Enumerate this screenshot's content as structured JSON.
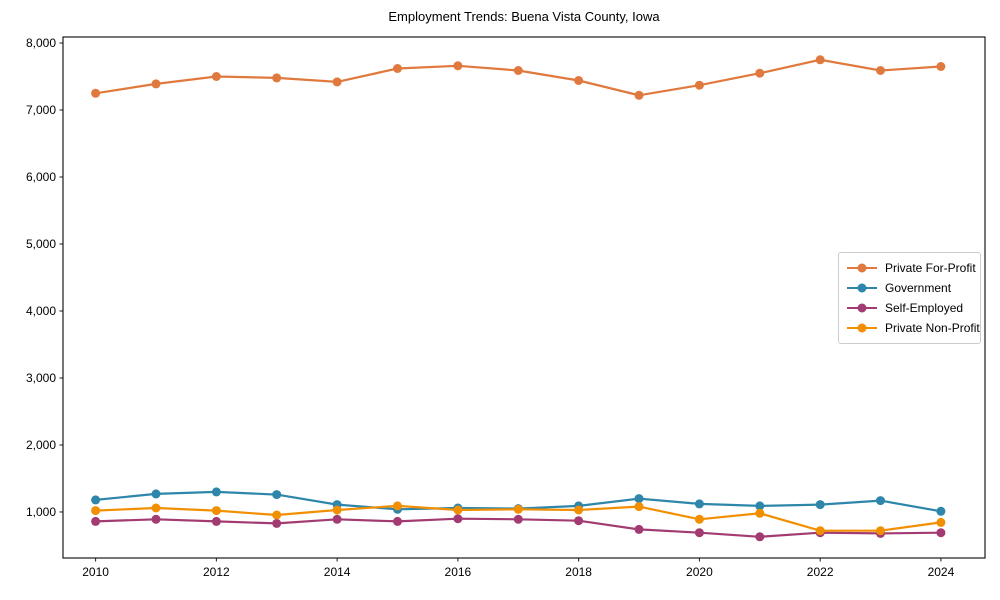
{
  "window": {
    "title": "Employment Trends: Buena Vista County, Iowa"
  },
  "chart_data": {
    "type": "line",
    "title": "Employment Trends: Buena Vista County, Iowa",
    "xlabel": "",
    "ylabel": "",
    "grid": false,
    "legend_position": "center-right",
    "marker": "circle",
    "x": [
      2010,
      2011,
      2012,
      2013,
      2014,
      2015,
      2016,
      2017,
      2018,
      2019,
      2020,
      2021,
      2022,
      2023,
      2024
    ],
    "series": [
      {
        "name": "Private For-Profit",
        "color": "#E0793D",
        "values": [
          7250,
          7390,
          7500,
          7480,
          7420,
          7620,
          7660,
          7590,
          7440,
          7220,
          7370,
          7550,
          7750,
          7590,
          7650
        ]
      },
      {
        "name": "Government",
        "color": "#2E86AB",
        "values": [
          1180,
          1270,
          1300,
          1260,
          1110,
          1040,
          1060,
          1050,
          1090,
          1200,
          1120,
          1090,
          1110,
          1170,
          1010
        ]
      },
      {
        "name": "Self-Employed",
        "color": "#A23B72",
        "values": [
          860,
          890,
          860,
          830,
          890,
          860,
          900,
          890,
          870,
          740,
          690,
          630,
          690,
          680,
          690
        ]
      },
      {
        "name": "Private Non-Profit",
        "color": "#F18F01",
        "values": [
          1020,
          1060,
          1020,
          955,
          1030,
          1090,
          1030,
          1040,
          1030,
          1080,
          890,
          980,
          720,
          720,
          845
        ]
      }
    ],
    "xticks": [
      2010,
      2012,
      2014,
      2016,
      2018,
      2020,
      2022,
      2024
    ],
    "yticks": [
      1000,
      2000,
      3000,
      4000,
      5000,
      6000,
      7000,
      8000
    ],
    "ytick_labels": [
      "1,000",
      "2,000",
      "3,000",
      "4,000",
      "5,000",
      "6,000",
      "7,000",
      "8,000"
    ],
    "xlim": [
      2009.46,
      2024.73
    ],
    "ylim": [
      313,
      8090
    ]
  }
}
